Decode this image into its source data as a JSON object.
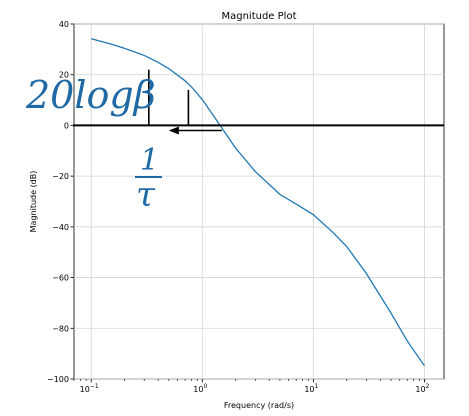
{
  "chart_data": {
    "type": "line",
    "title": "Magnitude Plot",
    "xlabel": "Frequency (rad/s)",
    "ylabel": "Magnitude (dB)",
    "xscale": "log",
    "xlim": [
      0.07,
      150
    ],
    "ylim": [
      -100,
      40
    ],
    "grid": true,
    "x_ticks": [
      {
        "value": 0.1,
        "base": "10",
        "exp": "−1"
      },
      {
        "value": 1,
        "base": "10",
        "exp": "0"
      },
      {
        "value": 10,
        "base": "10",
        "exp": "1"
      },
      {
        "value": 100,
        "base": "10",
        "exp": "2"
      }
    ],
    "y_ticks": [
      {
        "value": 40,
        "label": "40"
      },
      {
        "value": 20,
        "label": "20"
      },
      {
        "value": 0,
        "label": "0"
      },
      {
        "value": -20,
        "label": "−20"
      },
      {
        "value": -40,
        "label": "−40"
      },
      {
        "value": -60,
        "label": "−60"
      },
      {
        "value": -80,
        "label": "−80"
      },
      {
        "value": -100,
        "label": "−100"
      }
    ],
    "series": [
      {
        "color": "#1f77b4",
        "x": [
          0.1,
          0.15,
          0.2,
          0.3,
          0.4,
          0.5,
          0.7,
          0.8,
          1.0,
          1.3,
          1.6,
          2.0,
          3.0,
          5.0,
          7.0,
          10,
          15,
          20,
          30,
          50,
          70,
          100
        ],
        "y": [
          34.2,
          32.1,
          30.4,
          27.6,
          24.9,
          22.4,
          17.6,
          15.2,
          10.2,
          3.0,
          -2.8,
          -9.0,
          -18.2,
          -27.2,
          -31.0,
          -35.2,
          -42.2,
          -47.8,
          -58.4,
          -74.0,
          -85.0,
          -94.8
        ]
      }
    ],
    "annotations": {
      "upper_text": "20logβ",
      "fraction_numerator": "1",
      "fraction_denominator": "τ",
      "text_color": "#1f6aa5",
      "zero_line": {
        "y": 0,
        "color": "#000000"
      },
      "marker_1": {
        "x": 0.33,
        "y_top": 22,
        "y_bottom": 0
      },
      "marker_2": {
        "x": 0.75,
        "y_top": 14,
        "y_bottom": 0
      },
      "arrow": {
        "x_from": 1.5,
        "x_to": 0.5,
        "y": -2
      }
    }
  }
}
